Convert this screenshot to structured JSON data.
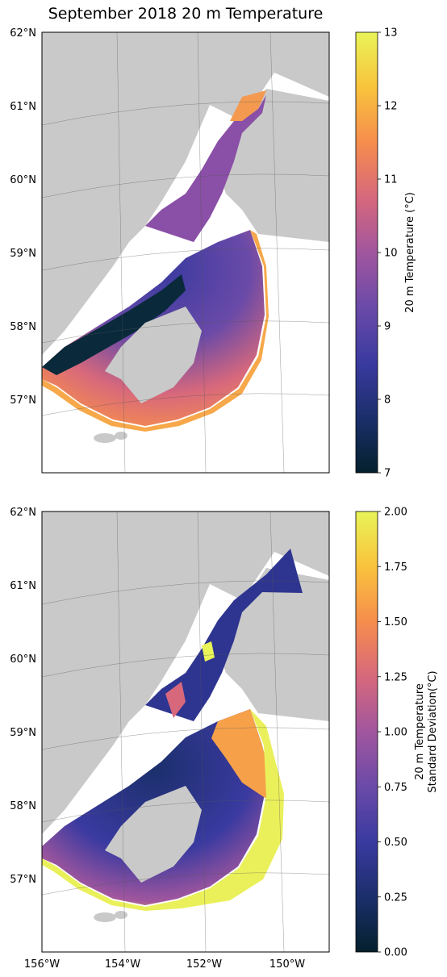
{
  "title": "September 2018 20 m Temperature",
  "maps": [
    {
      "id": "temperature",
      "lat_ticks": [
        "62°N",
        "61°N",
        "60°N",
        "59°N",
        "58°N",
        "57°N"
      ],
      "lon_ticks": [],
      "colorbar": {
        "label": "20 m Temperature (°C)",
        "min": 7,
        "max": 13,
        "ticks": [
          "7",
          "8",
          "9",
          "10",
          "11",
          "12",
          "13"
        ],
        "colormap": "thermal"
      }
    },
    {
      "id": "std",
      "lat_ticks": [
        "62°N",
        "61°N",
        "60°N",
        "59°N",
        "58°N",
        "57°N"
      ],
      "lon_ticks": [
        "156°W",
        "154°W",
        "152°W",
        "150°W"
      ],
      "colorbar": {
        "label_line1": "20 m Temperature",
        "label_line2": "Standard Deviation(°C)",
        "min": 0,
        "max": 2,
        "ticks": [
          "0.00",
          "0.25",
          "0.50",
          "0.75",
          "1.00",
          "1.25",
          "1.50",
          "1.75",
          "2.00"
        ],
        "colormap": "thermal"
      }
    }
  ],
  "colors": {
    "land": "#c9c9c9",
    "frame": "#000000",
    "cmap_stops": [
      "#04202c",
      "#1b2f6b",
      "#3a3aa0",
      "#6a4aa8",
      "#a1569e",
      "#d7687c",
      "#f68d4d",
      "#f9c33c",
      "#e9f458"
    ]
  }
}
